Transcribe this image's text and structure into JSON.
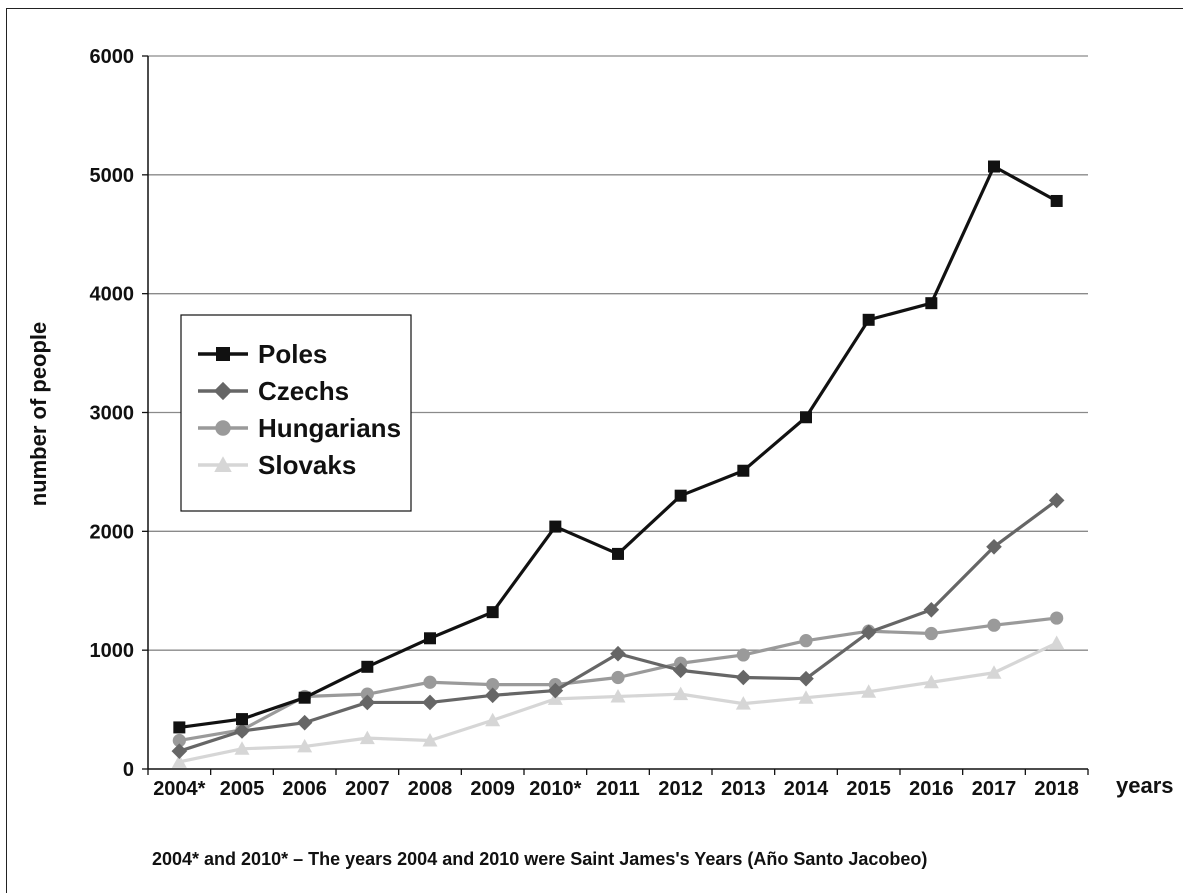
{
  "chart_data": {
    "type": "line",
    "categories": [
      "2004*",
      "2005",
      "2006",
      "2007",
      "2008",
      "2009",
      "2010*",
      "2011",
      "2012",
      "2013",
      "2014",
      "2015",
      "2016",
      "2017",
      "2018"
    ],
    "xlabel": "years",
    "ylabel": "number of people",
    "ylim": [
      0,
      6000
    ],
    "yticks": [
      0,
      1000,
      2000,
      3000,
      4000,
      5000,
      6000
    ],
    "grid": true,
    "legend_position": "left",
    "series": [
      {
        "name": "Poles",
        "marker": "square",
        "color": "#111111",
        "values": [
          350,
          420,
          600,
          860,
          1100,
          1320,
          2040,
          1810,
          2300,
          2510,
          2960,
          3780,
          3920,
          5070,
          4780
        ]
      },
      {
        "name": "Czechs",
        "marker": "diamond",
        "color": "#666666",
        "values": [
          150,
          320,
          390,
          560,
          560,
          620,
          660,
          970,
          830,
          770,
          760,
          1150,
          1340,
          1870,
          2260
        ]
      },
      {
        "name": "Hungarians",
        "marker": "circle",
        "color": "#9a9a9a",
        "values": [
          240,
          330,
          610,
          630,
          730,
          710,
          710,
          770,
          890,
          960,
          1080,
          1160,
          1140,
          1210,
          1270
        ]
      },
      {
        "name": "Slovaks",
        "marker": "triangle",
        "color": "#d6d6d6",
        "values": [
          60,
          170,
          190,
          260,
          240,
          410,
          590,
          610,
          630,
          550,
          600,
          650,
          730,
          810,
          1060
        ]
      }
    ],
    "footnote": "2004* and 2010* – The years 2004 and 2010 were Saint James's Years (Año Santo Jacobeo)"
  }
}
